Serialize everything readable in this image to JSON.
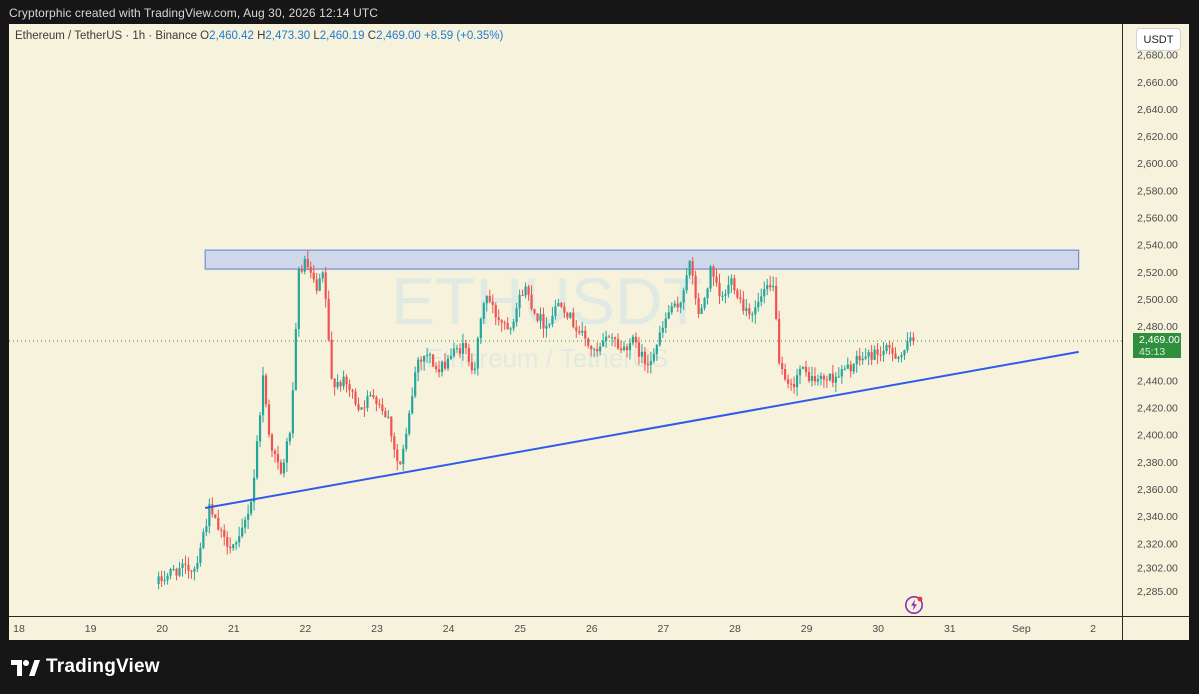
{
  "header": {
    "caption": "Cryptorphic created with TradingView.com, Aug 30, 2026 12:14 UTC"
  },
  "legend": {
    "symbol": "Ethereum / TetherUS · 1h · Binance",
    "open_label": "O",
    "open": "2,460.42",
    "high_label": "H",
    "high": "2,473.30",
    "low_label": "L",
    "low": "2,460.19",
    "close_label": "C",
    "close": "2,469.00",
    "change": "+8.59 (+0.35%)"
  },
  "watermark": {
    "ticker": "ETHUSDT",
    "name": "Ethereum / TetherUS"
  },
  "price_axis": {
    "currency": "USDT"
  },
  "price_tag": {
    "price": "2,469.00",
    "countdown": "45:13"
  },
  "footer": {
    "brand": "TradingView"
  },
  "colors": {
    "background": "#f6f2dc",
    "up": "#26a69a",
    "down": "#ef5350",
    "trendline": "#2f5bea",
    "zone_fill": "#cfd8ea",
    "zone_border": "#5b7fd1",
    "last_price": "#2e8f3c"
  },
  "icons": {
    "alert": "flash-icon",
    "logo": "tradingview-logo-icon"
  },
  "chart_data": {
    "type": "candlestick",
    "interval": "1h",
    "grid": false,
    "y_ticks": [
      2680,
      2660,
      2640,
      2620,
      2600,
      2580,
      2560,
      2540,
      2520,
      2500,
      2480,
      2460,
      2440,
      2420,
      2400,
      2380,
      2360,
      2340,
      2320,
      2302,
      2285
    ],
    "y_tick_labels": [
      "2,680.00",
      "2,660.00",
      "2,640.00",
      "2,620.00",
      "2,600.00",
      "2,580.00",
      "2,560.00",
      "2,540.00",
      "2,520.00",
      "2,500.00",
      "2,480.00",
      "2,460.00",
      "2,440.00",
      "2,420.00",
      "2,400.00",
      "2,380.00",
      "2,360.00",
      "2,340.00",
      "2,320.00",
      "2,302.00",
      "2,285.00"
    ],
    "x_ticks": [
      "18",
      "19",
      "20",
      "21",
      "22",
      "23",
      "24",
      "25",
      "26",
      "27",
      "28",
      "29",
      "30",
      "31",
      "Sep",
      "2"
    ],
    "x_tick_days": [
      18,
      19,
      20,
      21,
      22,
      23,
      24,
      25,
      26,
      27,
      28,
      29,
      30,
      31,
      32,
      33
    ],
    "ylim": [
      2280,
      2690
    ],
    "xlim_days": [
      17.95,
      34.5
    ],
    "last_price": 2469.0,
    "resistance_zone": {
      "from_day": 20.6,
      "to_day": 32.8,
      "low": 2522,
      "high": 2536
    },
    "trendline": {
      "start": {
        "day": 20.6,
        "price": 2346
      },
      "end": {
        "day": 32.8,
        "price": 2461
      }
    },
    "ohlc_path": [
      [
        19.95,
        2290
      ],
      [
        20.2,
        2300
      ],
      [
        20.5,
        2302
      ],
      [
        20.7,
        2345
      ],
      [
        20.9,
        2322
      ],
      [
        21.1,
        2318
      ],
      [
        21.3,
        2355
      ],
      [
        21.45,
        2442
      ],
      [
        21.55,
        2395
      ],
      [
        21.7,
        2370
      ],
      [
        21.85,
        2410
      ],
      [
        21.95,
        2520
      ],
      [
        22.05,
        2527
      ],
      [
        22.2,
        2505
      ],
      [
        22.3,
        2520
      ],
      [
        22.4,
        2440
      ],
      [
        22.6,
        2438
      ],
      [
        22.8,
        2420
      ],
      [
        23.0,
        2430
      ],
      [
        23.2,
        2412
      ],
      [
        23.35,
        2374
      ],
      [
        23.45,
        2398
      ],
      [
        23.6,
        2455
      ],
      [
        23.75,
        2460
      ],
      [
        23.9,
        2445
      ],
      [
        24.05,
        2458
      ],
      [
        24.25,
        2465
      ],
      [
        24.4,
        2448
      ],
      [
        24.55,
        2505
      ],
      [
        24.7,
        2488
      ],
      [
        24.9,
        2480
      ],
      [
        25.1,
        2510
      ],
      [
        25.25,
        2490
      ],
      [
        25.4,
        2480
      ],
      [
        25.6,
        2500
      ],
      [
        25.75,
        2485
      ],
      [
        25.95,
        2470
      ],
      [
        26.1,
        2458
      ],
      [
        26.3,
        2475
      ],
      [
        26.45,
        2462
      ],
      [
        26.6,
        2470
      ],
      [
        26.8,
        2452
      ],
      [
        26.95,
        2466
      ],
      [
        27.15,
        2495
      ],
      [
        27.25,
        2490
      ],
      [
        27.4,
        2528
      ],
      [
        27.55,
        2485
      ],
      [
        27.7,
        2520
      ],
      [
        27.85,
        2498
      ],
      [
        28.0,
        2515
      ],
      [
        28.15,
        2495
      ],
      [
        28.3,
        2490
      ],
      [
        28.45,
        2505
      ],
      [
        28.6,
        2508
      ],
      [
        28.65,
        2450
      ],
      [
        28.8,
        2432
      ],
      [
        28.95,
        2448
      ],
      [
        29.15,
        2440
      ],
      [
        29.4,
        2442
      ],
      [
        29.6,
        2448
      ],
      [
        29.8,
        2456
      ],
      [
        30.0,
        2460
      ],
      [
        30.2,
        2462
      ],
      [
        30.35,
        2458
      ],
      [
        30.5,
        2469
      ]
    ]
  }
}
